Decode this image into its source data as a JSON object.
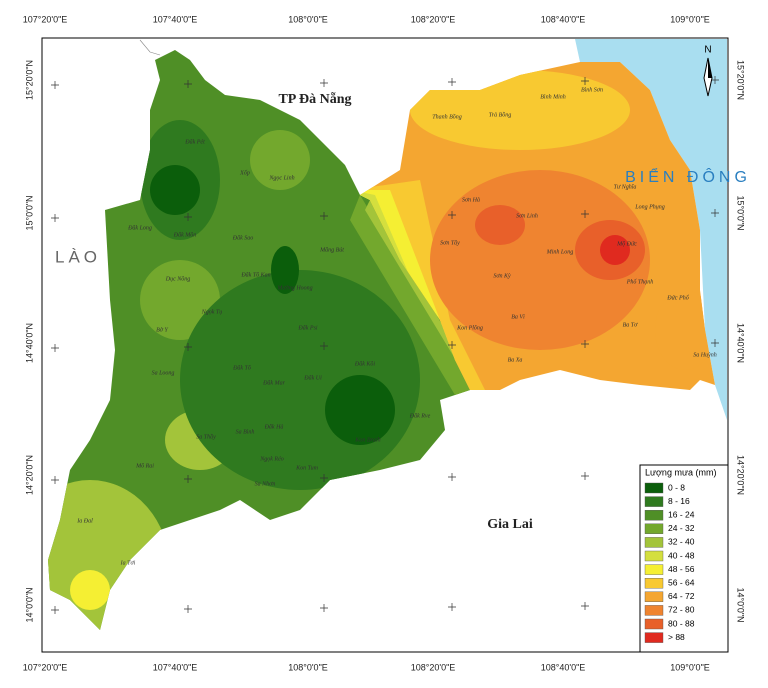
{
  "map": {
    "lon_labels": [
      "107°20'0\"E",
      "107°40'0\"E",
      "108°0'0\"E",
      "108°20'0\"E",
      "108°40'0\"E",
      "109°0'0\"E"
    ],
    "lat_labels": [
      "15°20'0\"N",
      "15°0'0\"N",
      "14°40'0\"N",
      "14°20'0\"N",
      "14°0'0\"N"
    ],
    "regions": [
      "TP Đà Nẵng",
      "LÀO",
      "BIỂN ĐÔNG",
      "Gia Lai"
    ],
    "north": "N",
    "places": [
      "Đăk Pét",
      "Xốp",
      "Ngọc Linh",
      "Đăk Long",
      "Đăk Môn",
      "Đăk Sao",
      "Mường Hoong",
      "Đăk Tô Kan",
      "Măng Bút",
      "Dục Nông",
      "Ngọk Tụ",
      "Bờ Y",
      "Đăk Psi",
      "Kon Plông",
      "Đăk Tô",
      "Sa Loong",
      "Đăk Mar",
      "Đăk Ui",
      "Đăk Kôi",
      "Sa Thầy",
      "Sa Bình",
      "Đăk Hà",
      "Ngọk Réo",
      "Kon Braih",
      "Đăk Rve",
      "Mô Rai",
      "Ia Đal",
      "Ia Tơi",
      "Sa Nhơn",
      "Kon Tum",
      "Thanh Bồng",
      "Trà Bồng",
      "Bình Minh",
      "Bình Sơn",
      "Sơn Hà",
      "Sơn Tây",
      "Sơn Linh",
      "Minh Long",
      "Ba Tơ",
      "Ba Vì",
      "Đức Phổ",
      "Mộ Đức",
      "Tư Nghĩa",
      "Sơn Kỳ",
      "Ba Xa",
      "Long Phụng",
      "Phổ Thạnh",
      "Sa Huỳnh"
    ],
    "legend": {
      "title": "Lượng mưa (mm)",
      "classes": [
        {
          "label": "0 - 8",
          "color": "#0b5e0b"
        },
        {
          "label": "8 - 16",
          "color": "#2f7a1f"
        },
        {
          "label": "16 - 24",
          "color": "#4f8f26"
        },
        {
          "label": "24 - 32",
          "color": "#73a82d"
        },
        {
          "label": "32 - 40",
          "color": "#a3c43a"
        },
        {
          "label": "40 - 48",
          "color": "#d4df3e"
        },
        {
          "label": "48 - 56",
          "color": "#f5ef33"
        },
        {
          "label": "56 - 64",
          "color": "#f8c931"
        },
        {
          "label": "64 - 72",
          "color": "#f4a631"
        },
        {
          "label": "72 - 80",
          "color": "#ef8430"
        },
        {
          "label": "80 - 88",
          "color": "#e8602a"
        },
        {
          "label": "> 88",
          "color": "#e02a1f"
        }
      ]
    }
  }
}
